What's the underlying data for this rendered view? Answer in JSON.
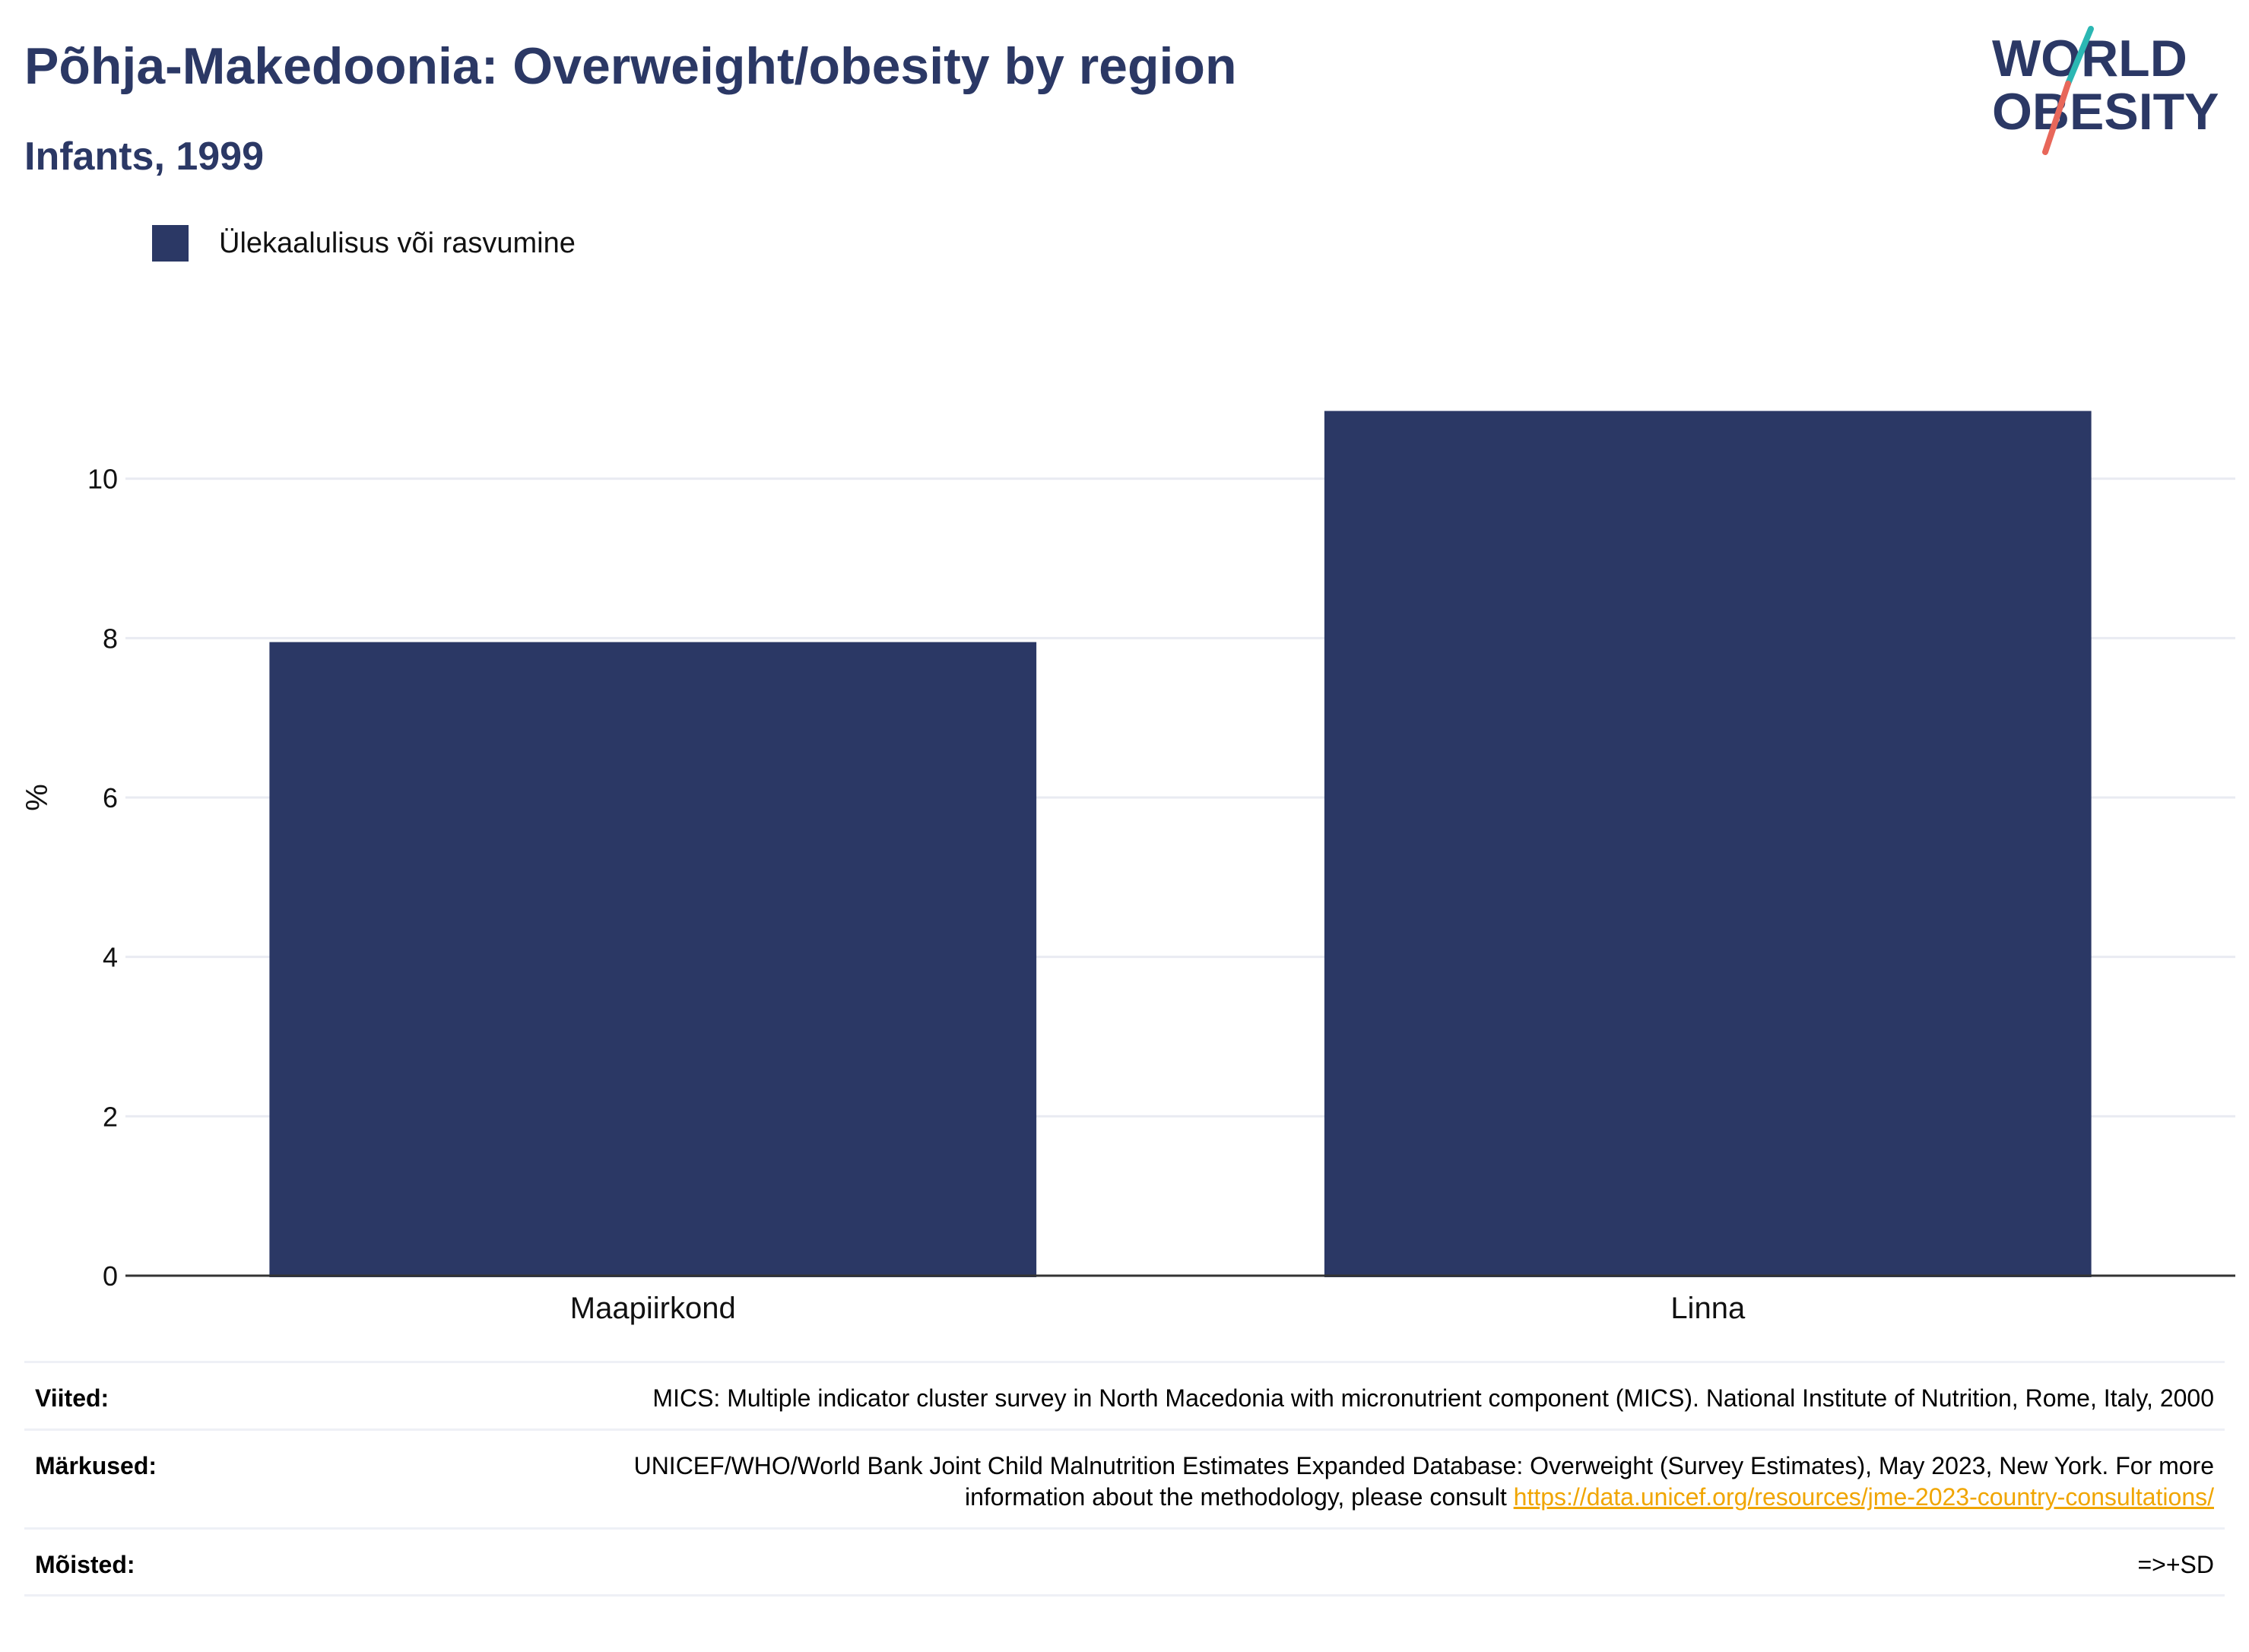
{
  "header": {
    "title": "Põhja-Makedoonia: Overweight/obesity by region",
    "subtitle": "Infants, 1999"
  },
  "logo": {
    "line1": "WORLD",
    "line2": "OBESITY"
  },
  "colors": {
    "bar": "#2b3865",
    "title": "#2b3865",
    "link": "#f0a500",
    "grid": "#e9ebf2"
  },
  "legend": {
    "label": "Ülekaalulisus või rasvumine"
  },
  "chart_data": {
    "type": "bar",
    "categories": [
      "Maapiirkond",
      "Linna"
    ],
    "series": [
      {
        "name": "Ülekaalulisus või rasvumine",
        "values": [
          7.95,
          10.85
        ]
      }
    ],
    "ylabel": "%",
    "xlabel": "",
    "ylim": [
      0,
      12
    ],
    "yticks": [
      0,
      2,
      4,
      6,
      8,
      10
    ],
    "grid": true,
    "legend_position": "top-left"
  },
  "footer": {
    "viited_label": "Viited:",
    "viited_text": "MICS: Multiple indicator cluster survey in North Macedonia with micronutrient component (MICS). National Institute of Nutrition, Rome, Italy, 2000",
    "markused_label": "Märkused:",
    "markused_text": "UNICEF/WHO/World Bank Joint Child Malnutrition Estimates Expanded Database: Overweight (Survey Estimates), May 2023, New York. For more information about the methodology, please consult",
    "markused_link": "https://data.unicef.org/resources/jme-2023-country-consultations/",
    "moisted_label": "Mõisted:",
    "moisted_text": "=>+SD"
  }
}
